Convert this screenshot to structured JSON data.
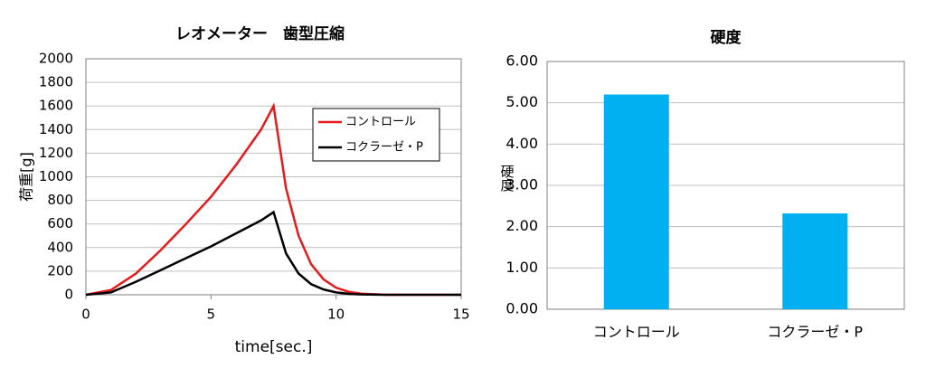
{
  "chart_data": [
    {
      "type": "line",
      "title": "レオメーター　歯型圧縮",
      "x_label": "time[sec.]",
      "y_label": "荷重[g]",
      "x": [
        0,
        1,
        2,
        3,
        4,
        5,
        6,
        7,
        7.5,
        8,
        8.5,
        9,
        9.5,
        10,
        10.5,
        11,
        12,
        13,
        14,
        15
      ],
      "series": [
        {
          "name": "コントロール",
          "color": "#e41a1c",
          "values": [
            0,
            40,
            180,
            380,
            600,
            830,
            1100,
            1400,
            1600,
            900,
            500,
            260,
            130,
            60,
            25,
            10,
            0,
            0,
            0,
            0
          ]
        },
        {
          "name": "コクラーゼ・P",
          "color": "#000000",
          "values": [
            0,
            20,
            110,
            210,
            310,
            410,
            520,
            630,
            700,
            350,
            180,
            90,
            45,
            20,
            8,
            3,
            0,
            0,
            0,
            0
          ]
        }
      ],
      "xlim": [
        0,
        15
      ],
      "xticks": [
        0,
        5,
        10,
        15
      ],
      "ylim": [
        0,
        2000
      ],
      "yticks": [
        0,
        200,
        400,
        600,
        800,
        1000,
        1200,
        1400,
        1600,
        1800,
        2000
      ],
      "grid": true,
      "legend": "upper-right"
    },
    {
      "type": "bar",
      "title": "硬度",
      "y_label": "硬度",
      "categories": [
        "コントロール",
        "コクラーゼ・P"
      ],
      "values": [
        5.2,
        2.32
      ],
      "color": "#00b0f0",
      "ylim": [
        0,
        6
      ],
      "yticks": [
        {
          "value": 0,
          "label": "0.00"
        },
        {
          "value": 1,
          "label": "1.00"
        },
        {
          "value": 2,
          "label": "2.00"
        },
        {
          "value": 3,
          "label": "3.00"
        },
        {
          "value": 4,
          "label": "4.00"
        },
        {
          "value": 5,
          "label": "5.00"
        },
        {
          "value": 6,
          "label": "6.00"
        }
      ],
      "grid": true
    }
  ]
}
